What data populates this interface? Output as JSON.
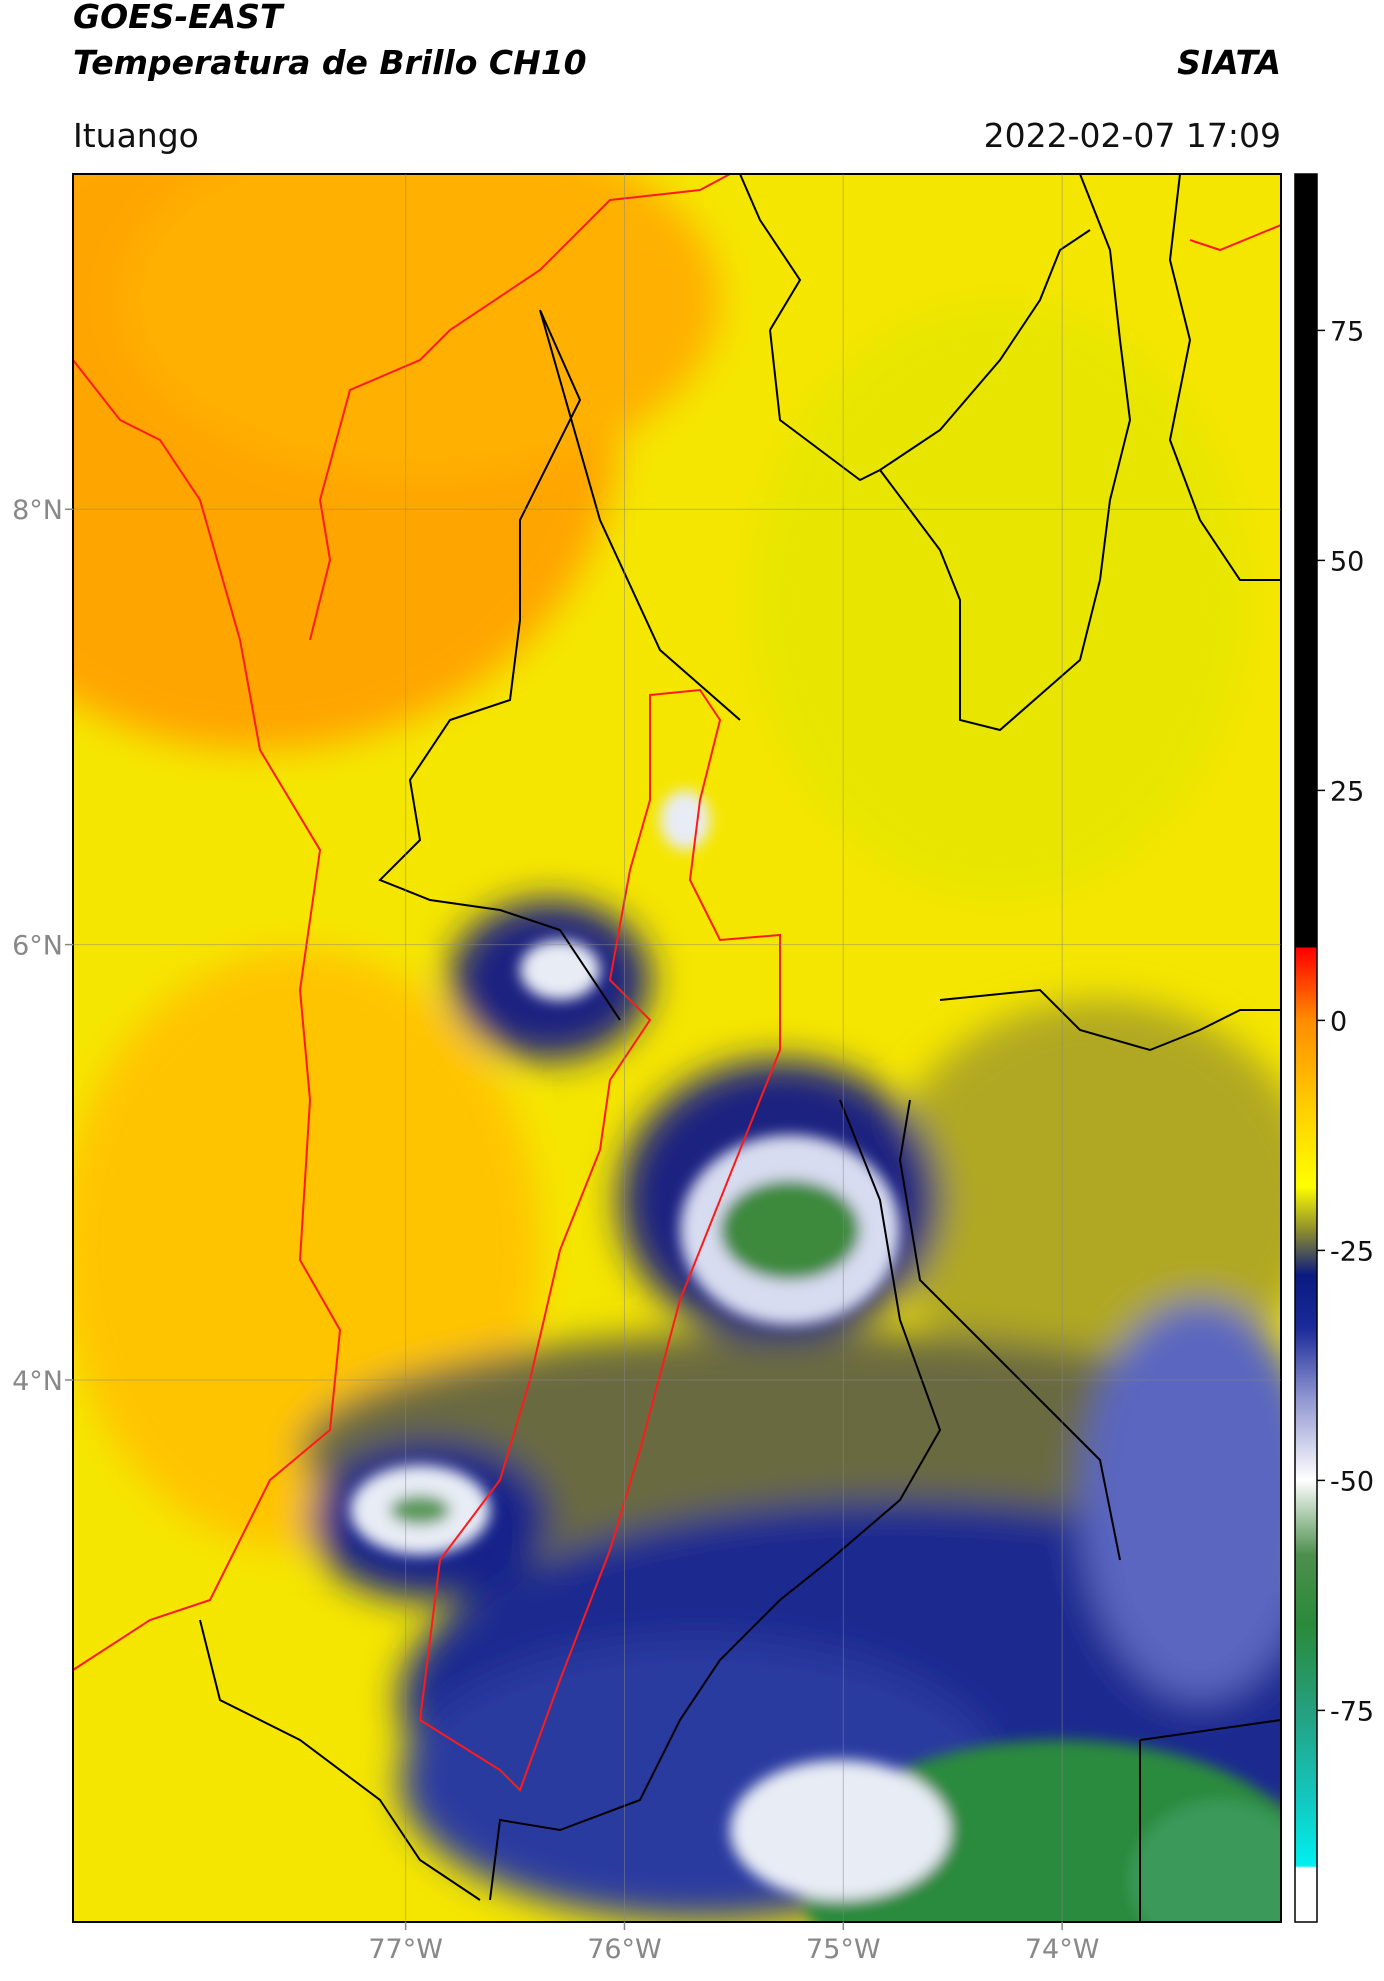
{
  "header": {
    "title": "GOES-EAST",
    "subtitle": "Temperatura de Brillo CH10",
    "source": "SIATA",
    "location": "Ituango",
    "datetime": "2022-02-07 17:09"
  },
  "map": {
    "lat_range": [
      1.51,
      9.54
    ],
    "lon_range": [
      -78.52,
      -73.0
    ],
    "lat_ticks": [
      {
        "value": 8,
        "label": "8°N"
      },
      {
        "value": 6,
        "label": "6°N"
      },
      {
        "value": 4,
        "label": "4°N"
      }
    ],
    "lon_ticks": [
      {
        "value": -77,
        "label": "77°W"
      },
      {
        "value": -76,
        "label": "76°W"
      },
      {
        "value": -75,
        "label": "75°W"
      },
      {
        "value": -74,
        "label": "74°W"
      }
    ]
  },
  "colorbar": {
    "range": [
      -98,
      92
    ],
    "ticks": [
      75,
      50,
      25,
      0,
      -25,
      -50,
      -75
    ]
  }
}
